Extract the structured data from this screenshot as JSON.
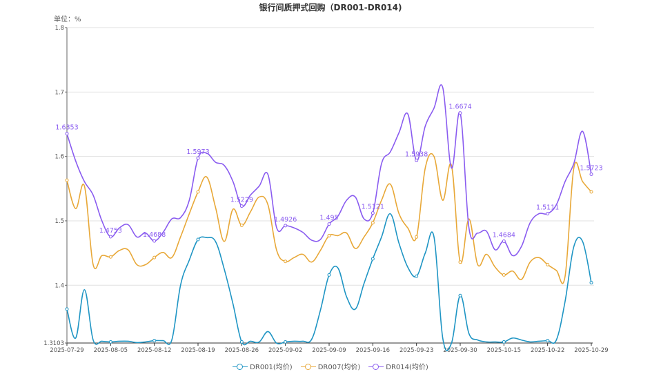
{
  "chart_data": {
    "type": "line",
    "title": "银行间质押式回购（DR001-DR014)",
    "unit_label": "单位：%",
    "ylim": [
      1.3103,
      1.8
    ],
    "y_ticks": [
      "1.3103",
      "1.4",
      "1.5",
      "1.6",
      "1.7",
      "1.8"
    ],
    "x_tick_labels": [
      "2025-07-29",
      "2025-08-05",
      "2025-08-12",
      "2025-08-19",
      "2025-08-26",
      "2025-09-02",
      "2025-09-09",
      "2025-09-16",
      "2025-09-23",
      "2025-09-30",
      "2025-10-15",
      "2025-10-22",
      "2025-10-29"
    ],
    "grid": true,
    "legend": "bottom",
    "series": [
      {
        "name": "DR001(均价)",
        "color": "#1f95c4",
        "values": [
          1.363,
          1.318,
          1.393,
          1.315,
          1.313,
          1.312,
          1.313,
          1.313,
          1.311,
          1.312,
          1.314,
          1.314,
          1.315,
          1.4,
          1.439,
          1.471,
          1.474,
          1.468,
          1.425,
          1.371,
          1.312,
          1.313,
          1.312,
          1.328,
          1.31,
          1.312,
          1.313,
          1.313,
          1.316,
          1.361,
          1.416,
          1.427,
          1.382,
          1.363,
          1.403,
          1.441,
          1.475,
          1.511,
          1.465,
          1.428,
          1.414,
          1.45,
          1.475,
          1.318,
          1.31,
          1.384,
          1.325,
          1.315,
          1.312,
          1.312,
          1.312,
          1.318,
          1.315,
          1.312,
          1.313,
          1.314,
          1.315,
          1.375,
          1.46,
          1.468,
          1.404
        ]
      },
      {
        "name": "DR007(均价)",
        "color": "#e8a838",
        "values": [
          1.563,
          1.519,
          1.554,
          1.432,
          1.446,
          1.444,
          1.454,
          1.455,
          1.432,
          1.432,
          1.443,
          1.451,
          1.443,
          1.475,
          1.511,
          1.545,
          1.568,
          1.521,
          1.468,
          1.518,
          1.493,
          1.514,
          1.537,
          1.525,
          1.454,
          1.437,
          1.443,
          1.448,
          1.436,
          1.454,
          1.477,
          1.477,
          1.481,
          1.457,
          1.475,
          1.497,
          1.532,
          1.557,
          1.511,
          1.489,
          1.475,
          1.582,
          1.6,
          1.532,
          1.586,
          1.436,
          1.503,
          1.432,
          1.448,
          1.428,
          1.416,
          1.422,
          1.409,
          1.436,
          1.443,
          1.432,
          1.423,
          1.414,
          1.582,
          1.561,
          1.545
        ]
      },
      {
        "name": "DR014(均价)",
        "color": "#8a5cf0",
        "values": [
          1.6353,
          1.593,
          1.561,
          1.54,
          1.5,
          1.4753,
          1.489,
          1.494,
          1.475,
          1.481,
          1.4688,
          1.482,
          1.503,
          1.505,
          1.532,
          1.5973,
          1.605,
          1.591,
          1.586,
          1.561,
          1.5229,
          1.54,
          1.554,
          1.572,
          1.489,
          1.4926,
          1.489,
          1.482,
          1.47,
          1.471,
          1.495,
          1.507,
          1.532,
          1.537,
          1.503,
          1.5121,
          1.589,
          1.607,
          1.637,
          1.666,
          1.5938,
          1.647,
          1.675,
          1.707,
          1.582,
          1.6674,
          1.489,
          1.481,
          1.484,
          1.455,
          1.4684,
          1.446,
          1.46,
          1.497,
          1.511,
          1.5111,
          1.525,
          1.561,
          1.589,
          1.639,
          1.5723
        ],
        "labels": [
          "1.6353",
          "1.4753",
          "1.4688",
          "1.5973",
          "1.5229",
          "1.4926",
          "1.495",
          "1.5121",
          "1.5938",
          "1.6674",
          "1.4684",
          "1.5111",
          "1.5723"
        ]
      }
    ]
  }
}
